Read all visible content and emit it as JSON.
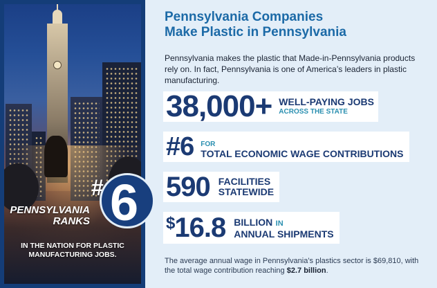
{
  "header": {
    "title_line1": "Pennsylvania Companies",
    "title_line2": "Make Plastic in Pennsylvania",
    "intro": "Pennsylvania makes the plastic that Made-in-Pennsylvania products rely on. In fact, Pennsylvania is one of America’s leaders in plastic manufacturing."
  },
  "stats": [
    {
      "value": "38,000+",
      "label1": "WELL-PAYING JOBS",
      "label2": "ACROSS THE STATE"
    },
    {
      "value": "#6",
      "label1": "FOR",
      "label2": "TOTAL ECONOMIC WAGE CONTRIBUTIONS"
    },
    {
      "value": "590",
      "label1": "FACILITIES",
      "label2": "STATEWIDE"
    },
    {
      "value_prefix": "$",
      "value": "16.8",
      "label1": "BILLION",
      "label1_suffix": "IN",
      "label2": "ANNUAL SHIPMENTS"
    }
  ],
  "footnote": {
    "text": "The average annual wage in Pennsylvania’s plastics sector is $69,810, with the total wage contribution reaching",
    "highlight": "$2.7 billion",
    "end": "."
  },
  "photo_panel": {
    "rank_label_line1": "PENNSYLVANIA",
    "rank_label_line2": "RANKS",
    "rank_hash": "#",
    "rank_number": "6",
    "rank_note_line1": "IN THE NATION FOR PLASTIC",
    "rank_note_line2": "MANUFACTURING JOBS."
  },
  "colors": {
    "title_blue": "#1c6aa7",
    "navy": "#1b3a73",
    "teal": "#2a8fb0",
    "panel_border": "#143d78",
    "background": "#e3eef8"
  }
}
